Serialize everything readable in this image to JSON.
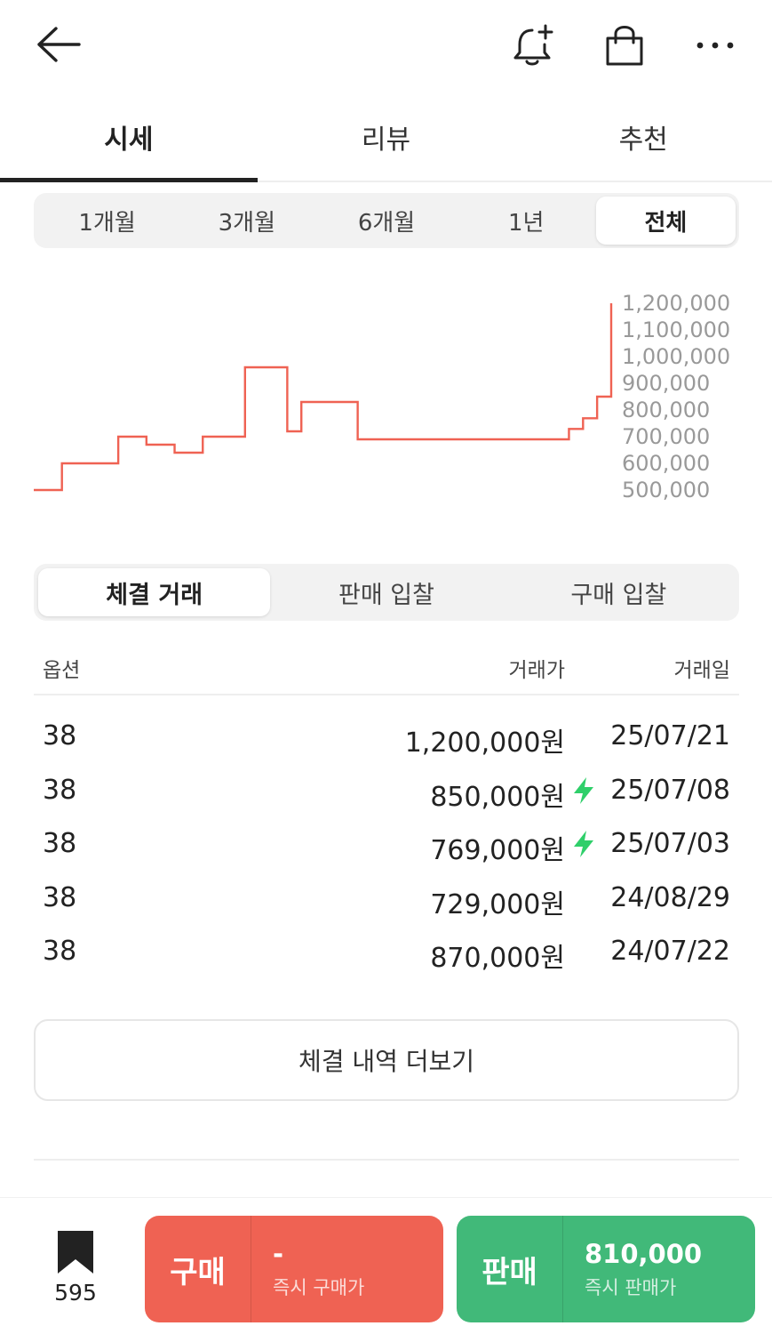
{
  "header": {
    "icons": [
      "back-arrow-icon",
      "bell-plus-icon",
      "shopping-bag-icon",
      "more-dots-icon"
    ]
  },
  "tabs": [
    {
      "label": "시세",
      "active": true
    },
    {
      "label": "리뷰",
      "active": false
    },
    {
      "label": "추천",
      "active": false
    }
  ],
  "period": {
    "options": [
      "1개월",
      "3개월",
      "6개월",
      "1년",
      "전체"
    ],
    "selected": "전체"
  },
  "chart_data": {
    "type": "line",
    "line_style": "step",
    "color": "#ef6253",
    "y_ticks": [
      "1,200,000",
      "1,100,000",
      "1,000,000",
      "900,000",
      "800,000",
      "700,000",
      "600,000",
      "500,000"
    ],
    "ylim": [
      500000,
      1200000
    ],
    "series": [
      {
        "values": [
          500000,
          500000,
          600000,
          600000,
          600000,
          600000,
          700000,
          700000,
          670000,
          670000,
          640000,
          640000,
          700000,
          700000,
          700000,
          960000,
          960000,
          960000,
          720000,
          830000,
          830000,
          830000,
          830000,
          690000,
          690000,
          690000,
          690000,
          690000,
          690000,
          690000,
          690000,
          690000,
          690000,
          690000,
          690000,
          690000,
          690000,
          690000,
          729000,
          769000,
          850000,
          1200000
        ]
      }
    ]
  },
  "trade_tabs": {
    "options": [
      "체결 거래",
      "판매 입찰",
      "구매 입찰"
    ],
    "selected": "체결 거래"
  },
  "table": {
    "headers": {
      "option": "옵션",
      "price": "거래가",
      "date": "거래일"
    },
    "rows": [
      {
        "option": "38",
        "price": "1,200,000원",
        "fast": false,
        "date": "25/07/21"
      },
      {
        "option": "38",
        "price": "850,000원",
        "fast": true,
        "date": "25/07/08"
      },
      {
        "option": "38",
        "price": "769,000원",
        "fast": true,
        "date": "25/07/03"
      },
      {
        "option": "38",
        "price": "729,000원",
        "fast": false,
        "date": "24/08/29"
      },
      {
        "option": "38",
        "price": "870,000원",
        "fast": false,
        "date": "24/07/22"
      }
    ],
    "more_label": "체결 내역 더보기"
  },
  "bottom": {
    "bookmark_count": "595",
    "buy": {
      "label": "구매",
      "price": "-",
      "sub": "즉시 구매가",
      "color": "#ef6253"
    },
    "sell": {
      "label": "판매",
      "price": "810,000",
      "sub": "즉시 판매가",
      "color": "#41b979"
    }
  },
  "colors": {
    "bolt": "#2fcf6a"
  }
}
